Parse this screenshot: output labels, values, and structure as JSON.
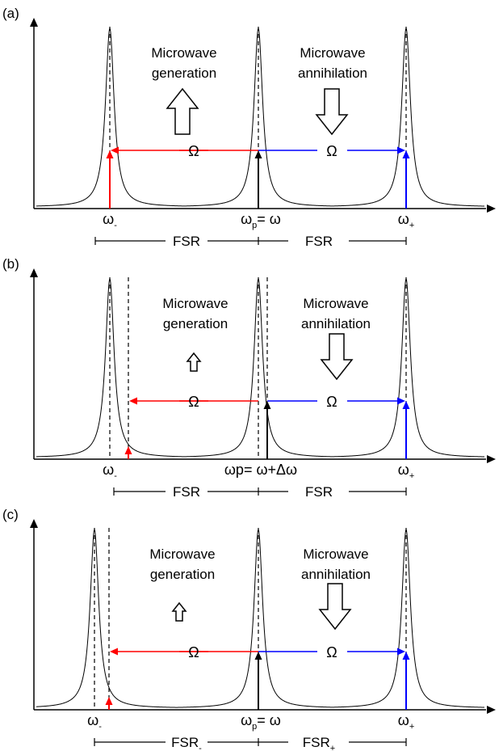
{
  "colors": {
    "generation": "#ff0000",
    "annihilation": "#0000ff",
    "pump": "#000000",
    "curve": "#000000"
  },
  "panels": [
    {
      "label": "(a)",
      "generation_text": [
        "Microwave",
        "generation"
      ],
      "annihilation_text": [
        "Microwave",
        "annihilation"
      ],
      "omega_label": "Ω",
      "gen_arrow_size": "large",
      "ann_arrow_size": "large",
      "freq_labels": {
        "left": {
          "main": "ω",
          "sub": "-"
        },
        "center": {
          "main": "ω",
          "sub": "p",
          "rest": "= ω"
        },
        "right": {
          "main": "ω",
          "sub": "+"
        }
      },
      "fsr_left": {
        "main": "FSR",
        "sub": ""
      },
      "fsr_right": {
        "main": "FSR",
        "sub": ""
      }
    },
    {
      "label": "(b)",
      "generation_text": [
        "Microwave",
        "generation"
      ],
      "annihilation_text": [
        "Microwave",
        "annihilation"
      ],
      "omega_label": "Ω",
      "gen_arrow_size": "small",
      "ann_arrow_size": "large",
      "freq_labels": {
        "left": {
          "main": "ω",
          "sub": "-"
        },
        "center": {
          "main": "ωp= ω+Δω",
          "sub": "",
          "rest": ""
        },
        "right": {
          "main": "ω",
          "sub": "+"
        }
      },
      "fsr_left": {
        "main": "FSR",
        "sub": ""
      },
      "fsr_right": {
        "main": "FSR",
        "sub": ""
      }
    },
    {
      "label": "(c)",
      "generation_text": [
        "Microwave",
        "generation"
      ],
      "annihilation_text": [
        "Microwave",
        "annihilation"
      ],
      "omega_label": "Ω",
      "gen_arrow_size": "small",
      "ann_arrow_size": "large",
      "freq_labels": {
        "left": {
          "main": "ω",
          "sub": "-"
        },
        "center": {
          "main": "ω",
          "sub": "p",
          "rest": "= ω"
        },
        "right": {
          "main": "ω",
          "sub": "+"
        }
      },
      "fsr_left": {
        "main": "FSR",
        "sub": "-"
      },
      "fsr_right": {
        "main": "FSR",
        "sub": "+"
      }
    }
  ]
}
